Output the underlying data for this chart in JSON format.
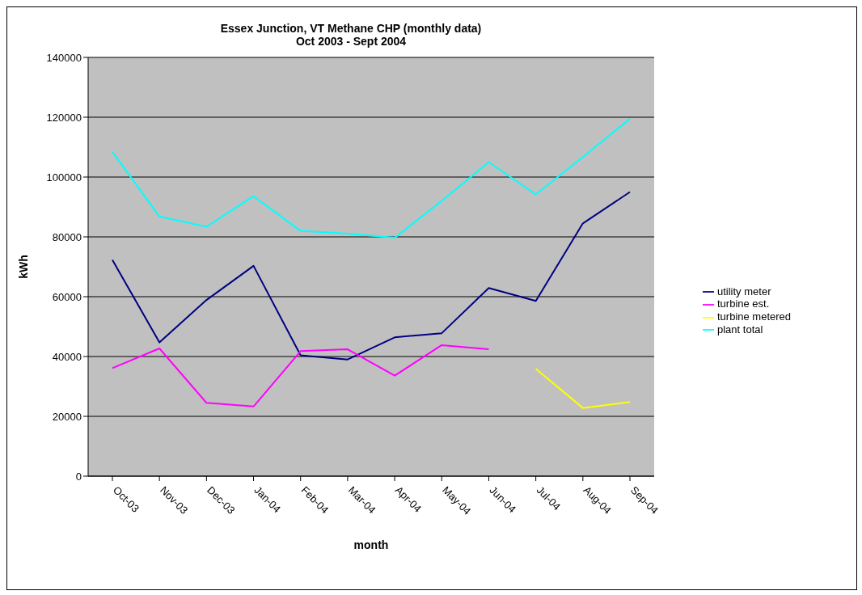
{
  "chart_data": {
    "type": "line",
    "title": "Essex Junction, VT Methane CHP (monthly data)",
    "subtitle": "Oct 2003 - Sept 2004",
    "xlabel": "month",
    "ylabel": "kWh",
    "categories": [
      "Oct-03",
      "Nov-03",
      "Dec-03",
      "Jan-04",
      "Feb-04",
      "Mar-04",
      "Apr-04",
      "May-04",
      "Jun-04",
      "Jul-04",
      "Aug-04",
      "Sep-04"
    ],
    "series": [
      {
        "name": "utility meter",
        "color": "#000080",
        "values": [
          72300,
          44700,
          58900,
          70300,
          40400,
          39000,
          46400,
          47800,
          62900,
          58600,
          84500,
          95000
        ]
      },
      {
        "name": "turbine est.",
        "color": "#ff00ff",
        "values": [
          36100,
          42700,
          24500,
          23300,
          41800,
          42400,
          33600,
          43800,
          42400,
          null,
          null,
          null
        ]
      },
      {
        "name": "turbine metered",
        "color": "#ffff00",
        "values": [
          null,
          null,
          null,
          null,
          null,
          null,
          null,
          null,
          null,
          35900,
          22800,
          24800
        ]
      },
      {
        "name": "plant total",
        "color": "#00ffff",
        "values": [
          108400,
          86800,
          83400,
          93600,
          82000,
          81100,
          79700,
          92000,
          105000,
          94200,
          106700,
          119500
        ]
      }
    ],
    "ylim": [
      0,
      140000
    ],
    "yticks": [
      0,
      20000,
      40000,
      60000,
      80000,
      100000,
      120000,
      140000
    ],
    "grid": "y",
    "legend": "right",
    "marker": "none",
    "line_style": "solid"
  }
}
